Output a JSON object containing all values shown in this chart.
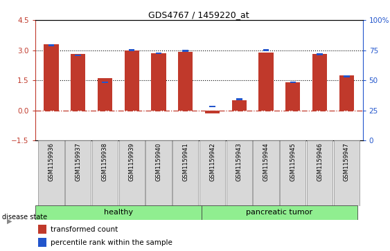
{
  "title": "GDS4767 / 1459220_at",
  "samples": [
    "GSM1159936",
    "GSM1159937",
    "GSM1159938",
    "GSM1159939",
    "GSM1159940",
    "GSM1159941",
    "GSM1159942",
    "GSM1159943",
    "GSM1159944",
    "GSM1159945",
    "GSM1159946",
    "GSM1159947"
  ],
  "transformed_count": [
    3.3,
    2.8,
    1.6,
    3.0,
    2.85,
    2.93,
    -0.15,
    0.5,
    2.9,
    1.4,
    2.8,
    1.75
  ],
  "percentile_rank_left": [
    3.25,
    2.75,
    1.4,
    3.0,
    2.85,
    2.97,
    0.2,
    0.55,
    3.0,
    1.4,
    2.8,
    1.7
  ],
  "bar_color": "#c0392b",
  "percentile_color": "#2255cc",
  "left_ylim": [
    -1.5,
    4.5
  ],
  "right_ylim": [
    0,
    100
  ],
  "left_yticks": [
    -1.5,
    0.0,
    1.5,
    3.0,
    4.5
  ],
  "right_yticks": [
    0,
    25,
    50,
    75,
    100
  ],
  "dotted_lines": [
    1.5,
    3.0
  ],
  "healthy_label": "healthy",
  "tumor_label": "pancreatic tumor",
  "group_color": "#90EE90",
  "disease_state_label": "disease state",
  "legend_red": "transformed count",
  "legend_blue": "percentile rank within the sample",
  "bar_width": 0.55,
  "left_ylabel_color": "#c0392b",
  "right_ylabel_color": "#2255cc",
  "bg_color": "#ffffff"
}
